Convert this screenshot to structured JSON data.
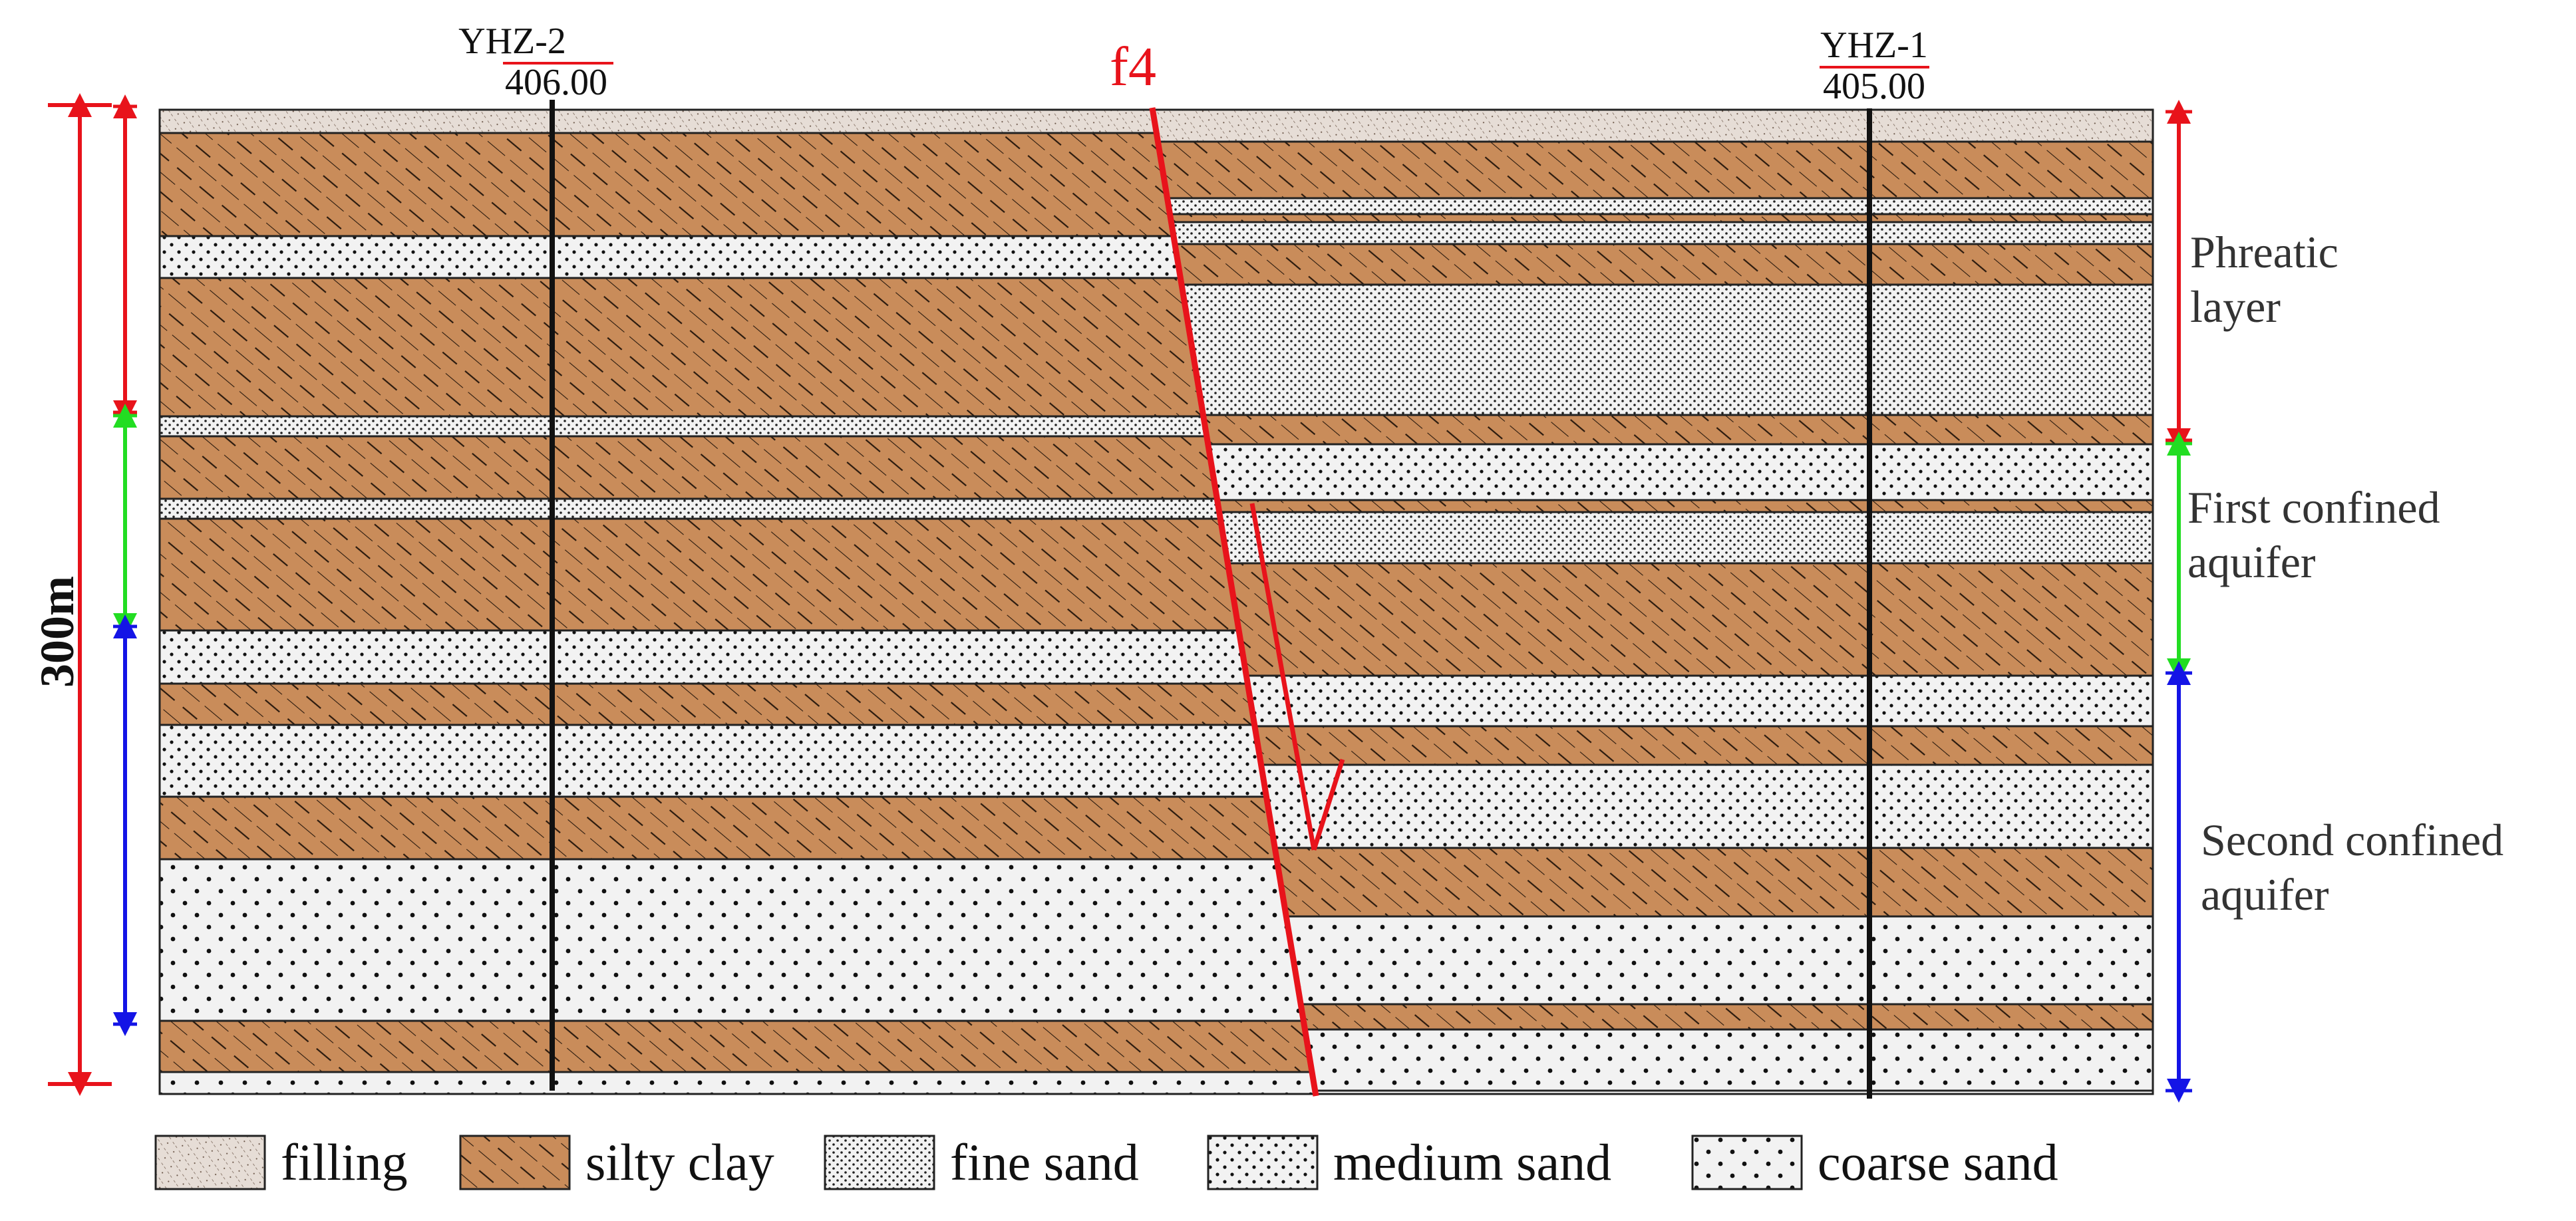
{
  "wells": [
    {
      "name": "YHZ-2",
      "elevation": "406.00"
    },
    {
      "name": "YHZ-1",
      "elevation": "405.00"
    }
  ],
  "fault": {
    "label": "f4",
    "color": "#e8131b"
  },
  "scale": {
    "label": "300m"
  },
  "aquifers": [
    {
      "line1": "Phreatic",
      "line2": "layer",
      "color": "#e8131b"
    },
    {
      "line1": "First confined",
      "line2": "aquifer",
      "color": "#22dd22"
    },
    {
      "line1": "Second confined",
      "line2": "aquifer",
      "color": "#1414e6"
    }
  ],
  "legend": [
    {
      "key": "filling",
      "label": "filling"
    },
    {
      "key": "silty_clay",
      "label": "silty clay"
    },
    {
      "key": "fine_sand",
      "label": "fine sand"
    },
    {
      "key": "medium_sand",
      "label": "medium sand"
    },
    {
      "key": "coarse_sand",
      "label": "coarse sand"
    }
  ],
  "colors": {
    "silty_clay": "#c98c5a",
    "sand_bg": "#f2f2f2",
    "filling": "#e6ddd6",
    "outline": "#222222"
  },
  "strata_left": [
    "filling",
    "silty_clay",
    "medium_sand",
    "silty_clay",
    "fine_sand",
    "silty_clay",
    "fine_sand",
    "silty_clay",
    "medium_sand",
    "silty_clay",
    "medium_sand",
    "silty_clay",
    "coarse_sand",
    "silty_clay",
    "coarse_sand"
  ],
  "strata_right": [
    "filling",
    "silty_clay",
    "fine_sand",
    "silty_clay",
    "fine_sand",
    "silty_clay",
    "medium_sand",
    "silty_clay",
    "fine_sand",
    "silty_clay",
    "medium_sand",
    "silty_clay",
    "medium_sand",
    "silty_clay",
    "coarse_sand",
    "silty_clay",
    "coarse_sand"
  ]
}
